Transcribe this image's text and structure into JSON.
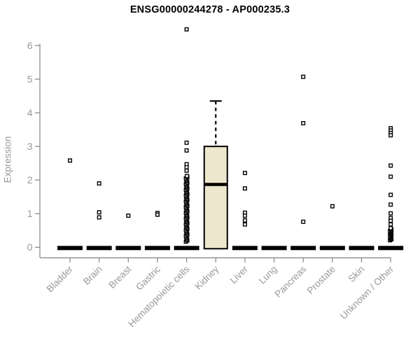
{
  "chart_data": {
    "type": "boxplot",
    "title": "ENSG00000244278 - AP000235.3",
    "ylabel": "Expression",
    "xlabel": "",
    "ylim": [
      0,
      6.6
    ],
    "yticks": [
      0,
      1,
      2,
      3,
      4,
      5,
      6
    ],
    "grid": false,
    "legend": null,
    "colors": {
      "box_fill": "#ECE7CD",
      "box_stroke": "#000000",
      "axis": "#8c8c8c",
      "tick_text": "#999999",
      "title_text": "#000000",
      "point_stroke": "#000000",
      "point_fill": "#ffffff"
    },
    "categories": [
      "Bladder",
      "Brain",
      "Breast",
      "Gastric",
      "Hematopoietic cells",
      "Kidney",
      "Liver",
      "Lung",
      "Pancreas",
      "Prostate",
      "Skin",
      "Unknown / Other"
    ],
    "boxes": [
      {
        "category": "Bladder",
        "flat": true,
        "median": 0,
        "q1": 0,
        "q3": 0,
        "whiskers": [
          0,
          0
        ],
        "outliers": [
          2.58
        ]
      },
      {
        "category": "Brain",
        "flat": true,
        "median": 0,
        "q1": 0,
        "q3": 0,
        "whiskers": [
          0,
          0
        ],
        "outliers": [
          1.9,
          1.04,
          0.89
        ]
      },
      {
        "category": "Breast",
        "flat": true,
        "median": 0,
        "q1": 0,
        "q3": 0,
        "whiskers": [
          0,
          0
        ],
        "outliers": [
          0.94
        ]
      },
      {
        "category": "Gastric",
        "flat": true,
        "median": 0,
        "q1": 0,
        "q3": 0,
        "whiskers": [
          0,
          0
        ],
        "outliers": [
          1.02,
          0.97
        ]
      },
      {
        "category": "Hematopoietic cells",
        "flat": true,
        "median": 0,
        "q1": 0,
        "q3": 0,
        "whiskers": [
          0,
          0
        ],
        "outliers": [
          6.48,
          3.11,
          2.88,
          2.47,
          2.38,
          2.28
        ],
        "dense_outliers": {
          "min": 0.17,
          "max": 2.12,
          "count": 58
        }
      },
      {
        "category": "Kidney",
        "flat": false,
        "median": 1.87,
        "q1": 0,
        "q3": 3.0,
        "whiskers": [
          0,
          4.35
        ],
        "outliers": []
      },
      {
        "category": "Liver",
        "flat": true,
        "median": 0,
        "q1": 0,
        "q3": 0,
        "whiskers": [
          0,
          0
        ],
        "outliers": [
          2.21,
          1.75,
          1.03,
          0.94,
          0.8,
          0.68
        ]
      },
      {
        "category": "Lung",
        "flat": true,
        "median": 0,
        "q1": 0,
        "q3": 0,
        "whiskers": [
          0,
          0
        ],
        "outliers": []
      },
      {
        "category": "Pancreas",
        "flat": true,
        "median": 0,
        "q1": 0,
        "q3": 0,
        "whiskers": [
          0,
          0
        ],
        "outliers": [
          5.07,
          3.69,
          0.76
        ]
      },
      {
        "category": "Prostate",
        "flat": true,
        "median": 0,
        "q1": 0,
        "q3": 0,
        "whiskers": [
          0,
          0
        ],
        "outliers": [
          1.22
        ]
      },
      {
        "category": "Skin",
        "flat": true,
        "median": 0,
        "q1": 0,
        "q3": 0,
        "whiskers": [
          0,
          0
        ],
        "outliers": []
      },
      {
        "category": "Unknown / Other",
        "flat": true,
        "median": 0,
        "q1": 0,
        "q3": 0,
        "whiskers": [
          0,
          0
        ],
        "outliers": [
          3.54,
          3.47,
          3.4,
          3.33,
          2.43,
          2.1,
          1.56,
          1.27,
          1.01,
          0.87,
          0.79,
          0.68
        ],
        "dense_outliers": {
          "min": 0.21,
          "max": 0.57,
          "count": 14
        }
      }
    ]
  }
}
